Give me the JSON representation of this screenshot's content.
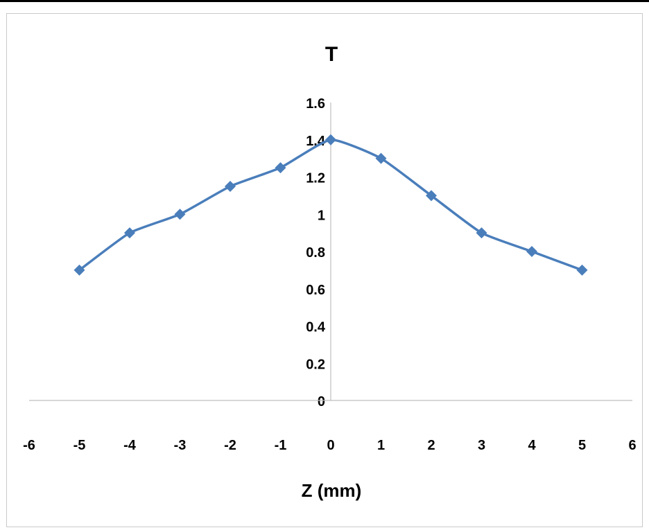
{
  "chart_data": {
    "type": "line",
    "title": "T",
    "xlabel": "Z (mm)",
    "ylabel": "",
    "xlim": [
      -6,
      6
    ],
    "ylim": [
      0,
      1.6
    ],
    "x_ticks": [
      "-6",
      "-5",
      "-4",
      "-3",
      "-2",
      "-1",
      "0",
      "1",
      "2",
      "3",
      "4",
      "5",
      "6"
    ],
    "y_ticks": [
      "0",
      "0.2",
      "0.4",
      "0.6",
      "0.8",
      "1",
      "1.2",
      "1.4",
      "1.6"
    ],
    "grid": false,
    "legend": "none",
    "series": [
      {
        "color": "#4a7ebb",
        "marker": "diamond",
        "smooth": true,
        "x": [
          -5,
          -4,
          -3,
          -2,
          -1,
          0,
          1,
          2,
          3,
          4,
          5
        ],
        "y": [
          0.7,
          0.9,
          1.0,
          1.15,
          1.25,
          1.4,
          1.3,
          1.1,
          0.9,
          0.8,
          0.7
        ]
      }
    ]
  }
}
